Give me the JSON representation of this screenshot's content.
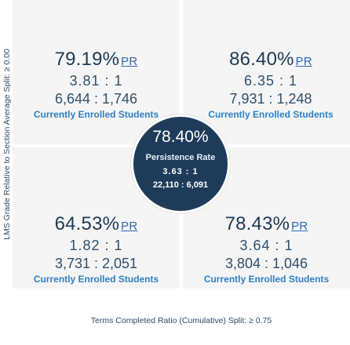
{
  "chart_data": {
    "type": "table",
    "y_axis_label": "LMS Grade Relative to Section Average Split: ≥ 0.00",
    "x_axis_label": "Terms Completed Ratio (Cumulative) Split: ≥ 0.75",
    "metric_tag": "PR",
    "quadrants": {
      "top_left": {
        "rate": "79.19%",
        "ratio": "3.81 : 1",
        "counts": "6,644 : 1,746",
        "status": "Currently Enrolled Students"
      },
      "top_right": {
        "rate": "86.40%",
        "ratio": "6.35 : 1",
        "counts": "7,931 : 1,248",
        "status": "Currently Enrolled Students"
      },
      "bottom_left": {
        "rate": "64.53%",
        "ratio": "1.82 : 1",
        "counts": "3,731 : 2,051",
        "status": "Currently Enrolled Students"
      },
      "bottom_right": {
        "rate": "78.43%",
        "ratio": "3.64 : 1",
        "counts": "3,804 : 1,046",
        "status": "Currently Enrolled Students"
      }
    },
    "overall": {
      "rate": "78.40%",
      "title": "Persistence Rate",
      "ratio": "3.63 : 1",
      "counts": "22,110 : 6,091"
    }
  },
  "colors": {
    "quadrant_bg": "#f5f5f5",
    "center_bg": "#1e3c5a",
    "accent": "#2e80c5",
    "link": "#2f68b5"
  }
}
